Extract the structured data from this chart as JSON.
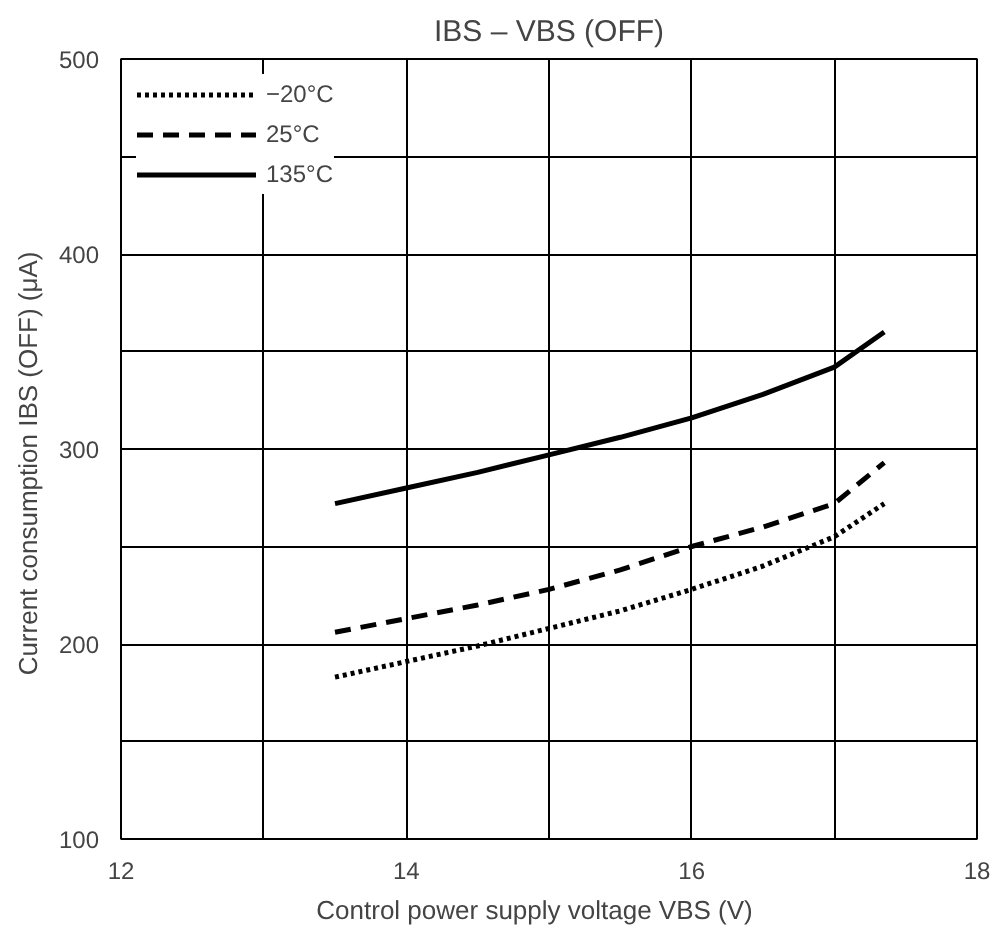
{
  "chart_data": {
    "type": "line",
    "title": "IBS – VBS (OFF)",
    "xlabel": "Control power supply voltage   VBS   (V)",
    "ylabel": "Current consumption   IBS (OFF)   (μA)",
    "x": [
      13.5,
      14,
      14.5,
      15,
      15.5,
      16,
      16.5,
      17,
      17.35
    ],
    "series": [
      {
        "name": "−20°C",
        "color": "#000000",
        "line_style": "dotted",
        "values": [
          183,
          191,
          199,
          208,
          217,
          228,
          240,
          255,
          272
        ]
      },
      {
        "name": "25°C",
        "color": "#000000",
        "line_style": "dashed",
        "values": [
          206,
          213,
          220,
          228,
          238,
          250,
          260,
          272,
          293
        ]
      },
      {
        "name": "135°C",
        "color": "#000000",
        "line_style": "solid",
        "values": [
          272,
          280,
          288,
          297,
          306,
          316,
          328,
          342,
          360
        ]
      }
    ],
    "xlim": [
      12,
      18
    ],
    "ylim": [
      100,
      500
    ],
    "xticks": [
      12,
      {
        "value": 13,
        "label": null
      },
      14,
      {
        "value": 15,
        "label": null
      },
      16,
      {
        "value": 17,
        "label": null
      },
      18
    ],
    "yticks": [
      100,
      {
        "value": 150,
        "label": null
      },
      200,
      {
        "value": 250,
        "label": null
      },
      300,
      {
        "value": 350,
        "label": null
      },
      400,
      {
        "value": 450,
        "label": null
      },
      500
    ],
    "grid": true,
    "legend": "top left",
    "marker": "none"
  }
}
